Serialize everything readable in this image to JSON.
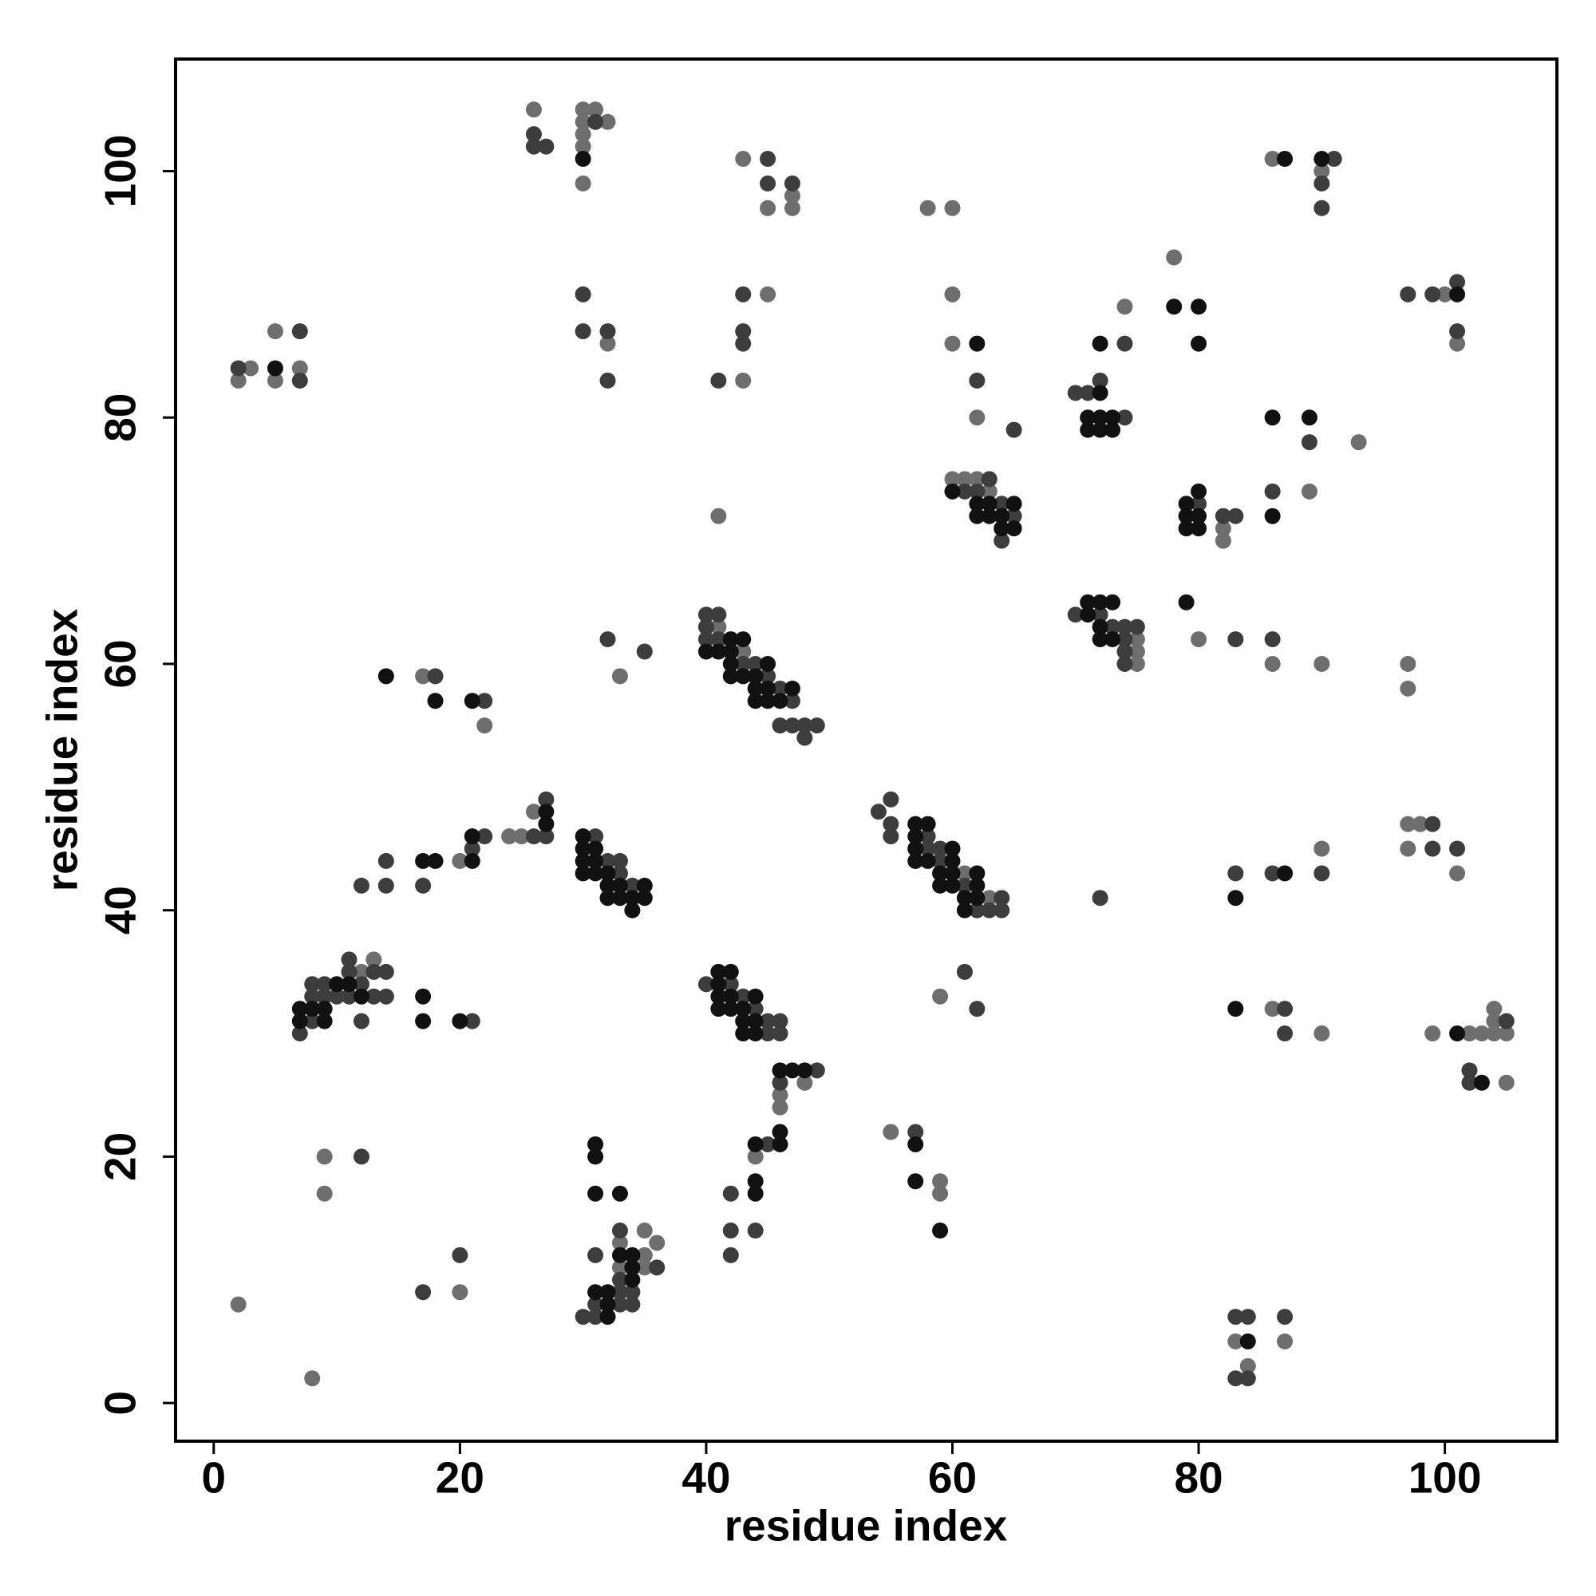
{
  "chart_data": {
    "type": "scatter",
    "x_label": "residue index",
    "y_label": "residue index",
    "xlim": [
      -3.1,
      109.1
    ],
    "ylim": [
      -3.1,
      109.1
    ],
    "xticks": [
      0,
      20,
      40,
      60,
      80,
      100
    ],
    "yticks": [
      0,
      20,
      40,
      60,
      80,
      100
    ],
    "grid": false,
    "series": [
      {
        "color": "#6e6e6e",
        "x": [
          26,
          30,
          31,
          30,
          32,
          30,
          30,
          30,
          43,
          47,
          45,
          47,
          58,
          60,
          86,
          90,
          78,
          45,
          60,
          74,
          100,
          3,
          2,
          5,
          5,
          7,
          32,
          43,
          60,
          62,
          101,
          93,
          89,
          60,
          61,
          62,
          63,
          41,
          82,
          82,
          75,
          75,
          75,
          80,
          86,
          90,
          97,
          97,
          41,
          43,
          33,
          17,
          22,
          26,
          24,
          25,
          20,
          61,
          63,
          90,
          97,
          98,
          97,
          101,
          12,
          13,
          48,
          46,
          46,
          59,
          86,
          90,
          99,
          102,
          103,
          104,
          105,
          104,
          104,
          105,
          55,
          59,
          59,
          44,
          9,
          9,
          35,
          33,
          36,
          35,
          33,
          35,
          20,
          2,
          8,
          83,
          87,
          84
        ],
        "y": [
          105,
          105,
          105,
          104,
          104,
          103,
          102,
          99,
          101,
          98,
          97,
          97,
          97,
          97,
          101,
          100,
          93,
          90,
          90,
          89,
          90,
          84,
          83,
          87,
          83,
          84,
          86,
          83,
          86,
          80,
          86,
          78,
          74,
          75,
          75,
          75,
          74,
          72,
          71,
          70,
          62,
          61,
          60,
          62,
          60,
          60,
          60,
          58,
          63,
          61,
          59,
          59,
          55,
          48,
          46,
          46,
          44,
          43,
          41,
          45,
          47,
          47,
          45,
          43,
          35,
          36,
          26,
          25,
          24,
          33,
          32,
          30,
          30,
          30,
          30,
          30,
          30,
          32,
          31,
          26,
          22,
          18,
          17,
          20,
          20,
          17,
          14,
          13,
          13,
          12,
          11,
          11,
          9,
          8,
          2,
          5,
          5,
          3
        ]
      },
      {
        "color": "#3d3d3d",
        "x": [
          26,
          26,
          27,
          31,
          45,
          45,
          47,
          91,
          90,
          90,
          30,
          43,
          97,
          99,
          101,
          2,
          7,
          7,
          30,
          32,
          32,
          43,
          43,
          41,
          62,
          65,
          74,
          101,
          70,
          71,
          72,
          74,
          89,
          86,
          63,
          61,
          62,
          64,
          65,
          64,
          80,
          82,
          83,
          70,
          72,
          73,
          74,
          75,
          74,
          74,
          74,
          83,
          86,
          40,
          41,
          40,
          40,
          41,
          43,
          44,
          45,
          46,
          47,
          46,
          47,
          48,
          49,
          48,
          32,
          35,
          18,
          22,
          27,
          26,
          27,
          22,
          21,
          14,
          14,
          12,
          17,
          31,
          32,
          33,
          33,
          34,
          54,
          55,
          55,
          55,
          58,
          58,
          59,
          59,
          61,
          64,
          62,
          63,
          64,
          72,
          83,
          86,
          90,
          99,
          99,
          101,
          7,
          8,
          8,
          8,
          9,
          9,
          10,
          11,
          11,
          12,
          11,
          13,
          13,
          14,
          14,
          12,
          21,
          40,
          42,
          43,
          44,
          45,
          46,
          45,
          46,
          49,
          46,
          61,
          62,
          87,
          87,
          105,
          102,
          102,
          57,
          45,
          42,
          42,
          44,
          42,
          12,
          33,
          31,
          36,
          33,
          33,
          34,
          31,
          33,
          34,
          30,
          31,
          20,
          17,
          83,
          84,
          87,
          83,
          84
        ],
        "y": [
          103,
          102,
          102,
          104,
          101,
          99,
          99,
          101,
          99,
          97,
          90,
          90,
          90,
          90,
          91,
          84,
          87,
          83,
          87,
          87,
          83,
          87,
          86,
          83,
          83,
          79,
          86,
          87,
          82,
          82,
          83,
          80,
          78,
          74,
          75,
          74,
          74,
          73,
          72,
          70,
          73,
          72,
          72,
          64,
          64,
          63,
          63,
          63,
          62,
          61,
          60,
          62,
          62,
          64,
          64,
          63,
          62,
          62,
          60,
          60,
          59,
          58,
          57,
          55,
          55,
          55,
          55,
          54,
          62,
          61,
          59,
          57,
          49,
          46,
          46,
          46,
          45,
          44,
          42,
          42,
          42,
          46,
          44,
          44,
          43,
          42,
          48,
          49,
          47,
          46,
          46,
          45,
          45,
          44,
          42,
          41,
          40,
          40,
          40,
          41,
          43,
          43,
          43,
          47,
          45,
          45,
          30,
          34,
          33,
          31,
          34,
          33,
          33,
          36,
          35,
          34,
          33,
          35,
          33,
          35,
          33,
          31,
          31,
          34,
          34,
          33,
          32,
          31,
          31,
          30,
          30,
          27,
          26,
          35,
          32,
          32,
          30,
          31,
          27,
          26,
          22,
          21,
          17,
          14,
          14,
          12,
          20,
          14,
          12,
          11,
          10,
          9,
          9,
          8,
          8,
          8,
          7,
          7,
          12,
          9,
          7,
          7,
          7,
          2,
          2
        ]
      },
      {
        "color": "#111111",
        "x": [
          30,
          87,
          90,
          78,
          80,
          101,
          5,
          62,
          72,
          80,
          72,
          71,
          72,
          73,
          71,
          72,
          73,
          86,
          89,
          86,
          60,
          62,
          63,
          65,
          62,
          63,
          64,
          64,
          65,
          79,
          80,
          79,
          80,
          79,
          80,
          71,
          72,
          73,
          71,
          72,
          72,
          73,
          79,
          42,
          43,
          40,
          41,
          42,
          42,
          45,
          42,
          43,
          44,
          44,
          45,
          47,
          44,
          45,
          46,
          14,
          18,
          21,
          27,
          27,
          21,
          21,
          17,
          18,
          30,
          30,
          31,
          30,
          31,
          30,
          31,
          32,
          32,
          33,
          35,
          32,
          33,
          34,
          35,
          34,
          57,
          58,
          57,
          57,
          60,
          57,
          58,
          60,
          59,
          60,
          62,
          59,
          60,
          62,
          61,
          62,
          61,
          83,
          87,
          7,
          7,
          8,
          9,
          9,
          10,
          11,
          12,
          17,
          17,
          20,
          41,
          42,
          41,
          41,
          42,
          44,
          41,
          42,
          43,
          43,
          44,
          43,
          44,
          46,
          47,
          48,
          83,
          101,
          103,
          57,
          57,
          59,
          44,
          46,
          46,
          44,
          44,
          31,
          31,
          31,
          33,
          33,
          34,
          34,
          34,
          31,
          32,
          32,
          32,
          84
        ],
        "y": [
          101,
          101,
          101,
          89,
          89,
          90,
          84,
          86,
          86,
          86,
          82,
          80,
          80,
          80,
          79,
          79,
          79,
          80,
          80,
          72,
          74,
          73,
          73,
          73,
          72,
          72,
          72,
          71,
          71,
          73,
          74,
          72,
          72,
          71,
          71,
          65,
          65,
          65,
          64,
          63,
          62,
          62,
          65,
          62,
          62,
          61,
          61,
          61,
          60,
          60,
          59,
          59,
          59,
          58,
          58,
          58,
          57,
          57,
          57,
          59,
          57,
          57,
          48,
          47,
          46,
          44,
          44,
          44,
          46,
          45,
          45,
          44,
          44,
          43,
          43,
          43,
          42,
          42,
          42,
          41,
          41,
          41,
          41,
          40,
          47,
          47,
          46,
          45,
          45,
          44,
          44,
          44,
          43,
          43,
          43,
          42,
          42,
          42,
          41,
          41,
          40,
          41,
          43,
          32,
          31,
          32,
          32,
          31,
          34,
          34,
          33,
          33,
          31,
          31,
          35,
          35,
          34,
          33,
          33,
          33,
          32,
          32,
          32,
          31,
          31,
          30,
          30,
          27,
          27,
          27,
          32,
          30,
          26,
          21,
          18,
          14,
          21,
          22,
          21,
          18,
          17,
          21,
          20,
          17,
          17,
          12,
          12,
          11,
          10,
          9,
          9,
          8,
          7,
          5
        ]
      }
    ]
  }
}
